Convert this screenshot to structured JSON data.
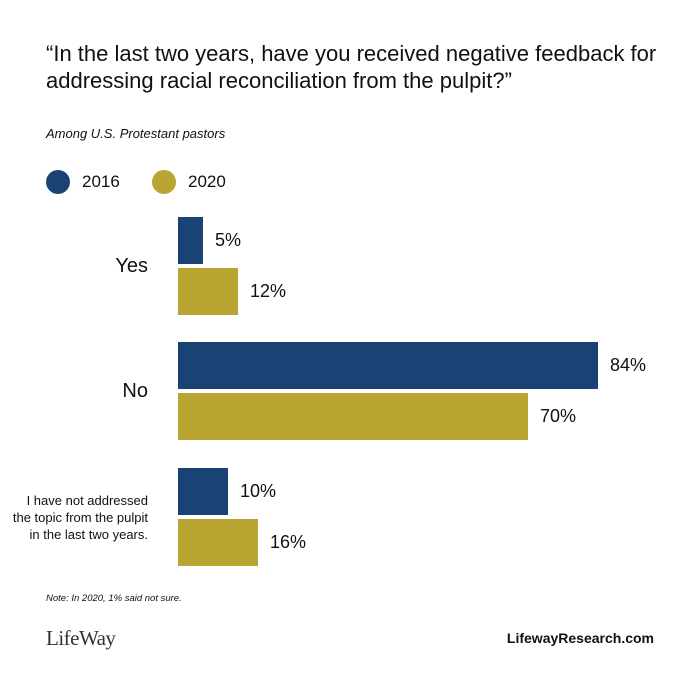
{
  "title": "“In the last two years, have you received negative feedback for addressing racial reconciliation from the pulpit?”",
  "subtitle": "Among U.S. Protestant pastors",
  "note": "Note: In 2020, 1% said not sure.",
  "footer": {
    "logo": "LifeWay",
    "website": "LifewayResearch.com"
  },
  "colors": {
    "2016": "#1a4275",
    "2020": "#bba532"
  },
  "chart_data": {
    "type": "bar",
    "orientation": "horizontal",
    "categories": [
      "Yes",
      "No",
      "I have not addressed the topic from the pulpit in the last two years."
    ],
    "series": [
      {
        "name": "2016",
        "values": [
          5,
          84,
          10
        ],
        "labels": [
          "5%",
          "84%",
          "10%"
        ]
      },
      {
        "name": "2020",
        "values": [
          12,
          70,
          16
        ],
        "labels": [
          "12%",
          "70%",
          "16%"
        ]
      }
    ],
    "xlim": [
      0,
      100
    ],
    "unit": "%",
    "legend": "top-left",
    "grid": false
  }
}
